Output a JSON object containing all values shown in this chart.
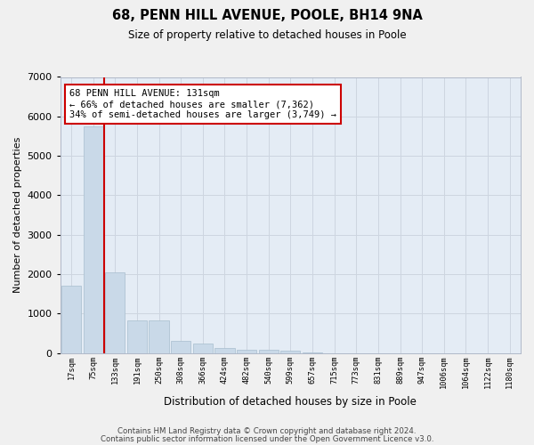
{
  "title1": "68, PENN HILL AVENUE, POOLE, BH14 9NA",
  "title2": "Size of property relative to detached houses in Poole",
  "xlabel": "Distribution of detached houses by size in Poole",
  "ylabel": "Number of detached properties",
  "bin_labels": [
    "17sqm",
    "75sqm",
    "133sqm",
    "191sqm",
    "250sqm",
    "308sqm",
    "366sqm",
    "424sqm",
    "482sqm",
    "540sqm",
    "599sqm",
    "657sqm",
    "715sqm",
    "773sqm",
    "831sqm",
    "889sqm",
    "947sqm",
    "1006sqm",
    "1064sqm",
    "1122sqm",
    "1180sqm"
  ],
  "bar_heights": [
    1700,
    5750,
    2050,
    820,
    820,
    300,
    230,
    130,
    90,
    90,
    65,
    10,
    0,
    0,
    0,
    0,
    0,
    0,
    0,
    0,
    0
  ],
  "bar_color": "#c9d9e8",
  "bar_edge_color": "#a8bece",
  "property_line_color": "#cc0000",
  "annotation_text": "68 PENN HILL AVENUE: 131sqm\n← 66% of detached houses are smaller (7,362)\n34% of semi-detached houses are larger (3,749) →",
  "annotation_box_color": "#ffffff",
  "annotation_box_edge_color": "#cc0000",
  "grid_color": "#cdd5e0",
  "background_color": "#e4ecf5",
  "fig_background": "#f0f0f0",
  "ylim": [
    0,
    7000
  ],
  "yticks": [
    0,
    1000,
    2000,
    3000,
    4000,
    5000,
    6000,
    7000
  ],
  "footer1": "Contains HM Land Registry data © Crown copyright and database right 2024.",
  "footer2": "Contains public sector information licensed under the Open Government Licence v3.0."
}
